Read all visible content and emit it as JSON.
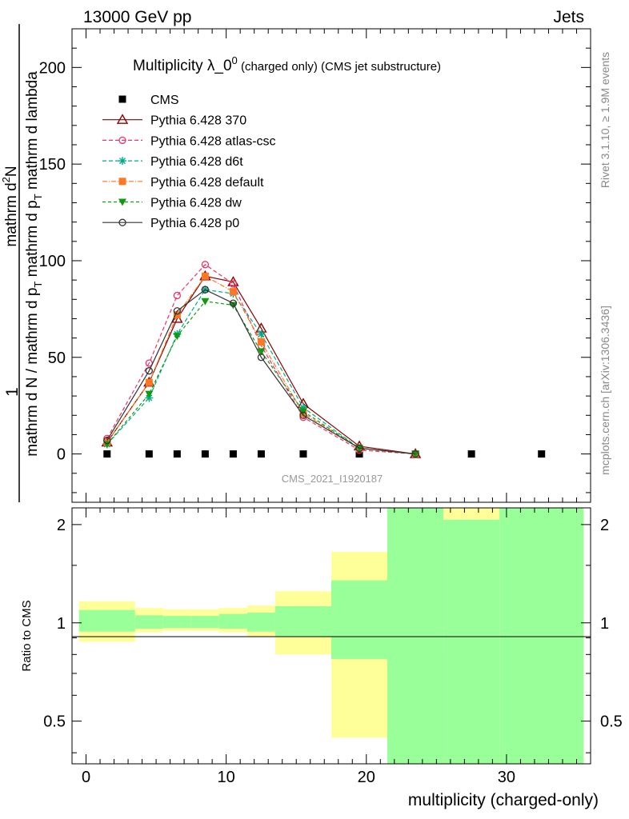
{
  "header": {
    "left": "13000 GeV pp",
    "right": "Jets"
  },
  "side_labels": {
    "rivet": "Rivet 3.1.10, ≥ 1.9M events",
    "mcplots": "mcplots.cern.ch [arXiv:1306.3436]"
  },
  "chart_data": [
    {
      "type": "line",
      "title_main": "Multiplicity λ_0",
      "title_sup": "0",
      "title_rest": " (charged only) (CMS jet substructure)",
      "ylabel_top": "1",
      "ylabel_denominator": "mathrm d N / mathrm d p",
      "ylabel_den_sub": "T",
      "ylabel_den_tail": " mathrm d p",
      "ylabel_den_sub2": "T",
      "ylabel_den_end": " mathrm d lambda",
      "ylabel_numerator": "mathrm d",
      "ylabel_num_sup": "2",
      "ylabel_num_end": "N",
      "ylim": [
        -25,
        220
      ],
      "xlim": [
        -1,
        36
      ],
      "yticks": [
        0,
        50,
        100,
        150,
        200
      ],
      "watermark": "CMS_2021_I1920187",
      "legend_position": "top-left",
      "series": [
        {
          "name": "CMS",
          "color": "#000000",
          "dash": "",
          "marker": "square",
          "x": [
            1.5,
            4.5,
            6.5,
            8.5,
            10.5,
            12.5,
            15.5,
            19.5,
            23.5,
            27.5,
            32.5
          ],
          "y": [
            0,
            0,
            0,
            0,
            0,
            0,
            0,
            0,
            0,
            0,
            0
          ]
        },
        {
          "name": "Pythia 6.428 370",
          "color": "#8b0000",
          "dash": "",
          "marker": "triangle-open",
          "x": [
            1.5,
            4.5,
            6.5,
            8.5,
            10.5,
            12.5,
            15.5,
            19.5,
            23.5
          ],
          "y": [
            6,
            37,
            70,
            92,
            89,
            65,
            26,
            4,
            0
          ]
        },
        {
          "name": "Pythia 6.428 atlas-csc",
          "color": "#ee3366",
          "dash": "5,3",
          "marker": "circle-open",
          "x": [
            1.5,
            4.5,
            6.5,
            8.5,
            10.5,
            12.5,
            15.5,
            19.5,
            23.5
          ],
          "y": [
            8,
            47,
            82,
            98,
            88,
            56,
            19,
            2,
            0
          ]
        },
        {
          "name": "Pythia 6.428 d6t",
          "color": "#00aa88",
          "dash": "5,3",
          "marker": "star",
          "x": [
            1.5,
            4.5,
            6.5,
            8.5,
            10.5,
            12.5,
            15.5,
            19.5,
            23.5
          ],
          "y": [
            5,
            29,
            62,
            85,
            83,
            62,
            24,
            3,
            0
          ]
        },
        {
          "name": "Pythia 6.428 default",
          "color": "#ff7722",
          "dash": "6,2,1,2",
          "marker": "square",
          "x": [
            1.5,
            4.5,
            6.5,
            8.5,
            10.5,
            12.5,
            15.5,
            19.5,
            23.5
          ],
          "y": [
            6,
            37,
            72,
            92,
            84,
            58,
            21,
            3,
            0
          ]
        },
        {
          "name": "Pythia 6.428 dw",
          "color": "#119911",
          "dash": "4,3",
          "marker": "triangle-down",
          "x": [
            1.5,
            4.5,
            6.5,
            8.5,
            10.5,
            12.5,
            15.5,
            19.5,
            23.5
          ],
          "y": [
            5,
            31,
            61,
            79,
            77,
            53,
            22,
            3,
            0
          ]
        },
        {
          "name": "Pythia 6.428 p0",
          "color": "#333333",
          "dash": "",
          "marker": "circle-open",
          "x": [
            1.5,
            4.5,
            6.5,
            8.5,
            10.5,
            12.5,
            15.5,
            19.5,
            23.5
          ],
          "y": [
            7,
            43,
            74,
            85,
            78,
            50,
            20,
            3,
            0
          ]
        }
      ]
    },
    {
      "type": "area",
      "ylabel": "Ratio to CMS",
      "xlabel": "multiplicity (charged-only)",
      "ylim": [
        0.37,
        2.25
      ],
      "yscale": "log",
      "xlim": [
        -1,
        36
      ],
      "yticks": [
        0.5,
        1,
        2
      ],
      "ytick_labels": [
        "0.5",
        "1",
        "2"
      ],
      "xticks": [
        0,
        10,
        20,
        30
      ],
      "bins": [
        {
          "x0": -0.5,
          "x1": 3.5,
          "yellow": [
            0.875,
            1.165
          ],
          "green": [
            0.94,
            1.095
          ]
        },
        {
          "x0": 3.5,
          "x1": 5.5,
          "yellow": [
            0.935,
            1.11
          ],
          "green": [
            0.96,
            1.055
          ]
        },
        {
          "x0": 5.5,
          "x1": 7.5,
          "yellow": [
            0.945,
            1.1
          ],
          "green": [
            0.965,
            1.05
          ]
        },
        {
          "x0": 7.5,
          "x1": 9.5,
          "yellow": [
            0.945,
            1.1
          ],
          "green": [
            0.965,
            1.05
          ]
        },
        {
          "x0": 9.5,
          "x1": 11.5,
          "yellow": [
            0.935,
            1.11
          ],
          "green": [
            0.96,
            1.065
          ]
        },
        {
          "x0": 11.5,
          "x1": 13.5,
          "yellow": [
            0.905,
            1.13
          ],
          "green": [
            0.94,
            1.075
          ]
        },
        {
          "x0": 13.5,
          "x1": 17.5,
          "yellow": [
            0.8,
            1.25
          ],
          "green": [
            0.905,
            1.125
          ]
        },
        {
          "x0": 17.5,
          "x1": 21.5,
          "yellow": [
            0.445,
            1.65
          ],
          "green": [
            0.775,
            1.35
          ]
        },
        {
          "x0": 21.5,
          "x1": 25.5,
          "yellow": [
            0.37,
            2.25
          ],
          "green": [
            0.37,
            2.25
          ]
        },
        {
          "x0": 25.5,
          "x1": 29.5,
          "yellow": [
            0.37,
            2.25
          ],
          "green": [
            0.37,
            2.07
          ]
        },
        {
          "x0": 29.5,
          "x1": 35.5,
          "yellow": [
            0.37,
            2.25
          ],
          "green": [
            0.37,
            2.25
          ]
        }
      ]
    }
  ]
}
